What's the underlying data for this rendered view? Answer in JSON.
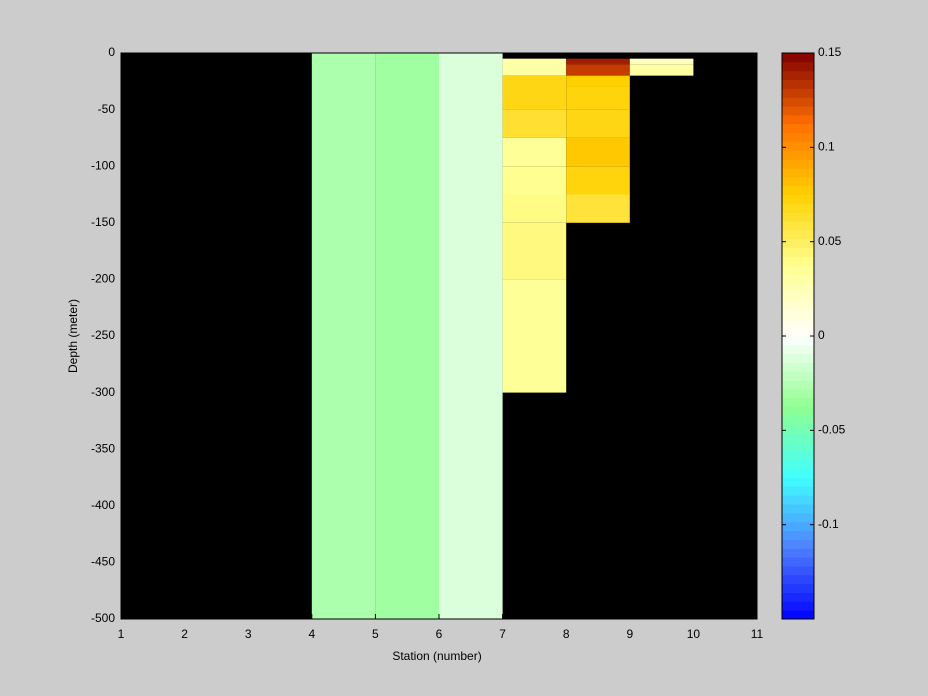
{
  "chart_data": {
    "type": "heatmap",
    "xlabel": "Station (number)",
    "ylabel": "Depth (meter)",
    "xlim": [
      1,
      11
    ],
    "xticks": [
      1,
      2,
      3,
      4,
      5,
      6,
      7,
      8,
      9,
      10,
      11
    ],
    "ylim": [
      -500,
      0
    ],
    "yticks": [
      0,
      -50,
      -100,
      -150,
      -200,
      -250,
      -300,
      -350,
      -400,
      -450,
      -500
    ],
    "clim": [
      -0.15,
      0.15
    ],
    "cticks": [
      0.15,
      0.1,
      0.05,
      0,
      -0.05,
      -0.1
    ],
    "colormap": [
      "#0000ff",
      "#4f7fff",
      "#40ffff",
      "#90ff90",
      "#ffffff",
      "#ffff90",
      "#ffd000",
      "#ff7000",
      "#800000"
    ],
    "background": "#000000",
    "cells": [
      {
        "x": [
          4,
          5
        ],
        "y": [
          -500,
          0
        ],
        "value": -0.028
      },
      {
        "x": [
          5,
          6
        ],
        "y": [
          -500,
          0
        ],
        "value": -0.032
      },
      {
        "x": [
          6,
          7
        ],
        "y": [
          -500,
          0
        ],
        "value": -0.012
      },
      {
        "x": [
          7,
          8
        ],
        "y": [
          -20,
          -5
        ],
        "value": 0.03
      },
      {
        "x": [
          7,
          8
        ],
        "y": [
          -50,
          -20
        ],
        "value": 0.07
      },
      {
        "x": [
          7,
          8
        ],
        "y": [
          -75,
          -50
        ],
        "value": 0.062
      },
      {
        "x": [
          7,
          8
        ],
        "y": [
          -100,
          -75
        ],
        "value": 0.035
      },
      {
        "x": [
          7,
          8
        ],
        "y": [
          -125,
          -100
        ],
        "value": 0.037
      },
      {
        "x": [
          7,
          8
        ],
        "y": [
          -150,
          -125
        ],
        "value": 0.04
      },
      {
        "x": [
          7,
          8
        ],
        "y": [
          -200,
          -150
        ],
        "value": 0.042
      },
      {
        "x": [
          7,
          8
        ],
        "y": [
          -300,
          -200
        ],
        "value": 0.035
      },
      {
        "x": [
          8,
          9
        ],
        "y": [
          -10,
          -5
        ],
        "value": 0.14
      },
      {
        "x": [
          8,
          9
        ],
        "y": [
          -20,
          -10
        ],
        "value": 0.13
      },
      {
        "x": [
          8,
          9
        ],
        "y": [
          -30,
          -20
        ],
        "value": 0.075
      },
      {
        "x": [
          8,
          9
        ],
        "y": [
          -50,
          -30
        ],
        "value": 0.072
      },
      {
        "x": [
          8,
          9
        ],
        "y": [
          -75,
          -50
        ],
        "value": 0.07
      },
      {
        "x": [
          8,
          9
        ],
        "y": [
          -100,
          -75
        ],
        "value": 0.078
      },
      {
        "x": [
          8,
          9
        ],
        "y": [
          -125,
          -100
        ],
        "value": 0.072
      },
      {
        "x": [
          8,
          9
        ],
        "y": [
          -150,
          -125
        ],
        "value": 0.06
      },
      {
        "x": [
          9,
          10
        ],
        "y": [
          -10,
          -5
        ],
        "value": 0.022
      },
      {
        "x": [
          9,
          10
        ],
        "y": [
          -20,
          -10
        ],
        "value": 0.03
      }
    ]
  }
}
